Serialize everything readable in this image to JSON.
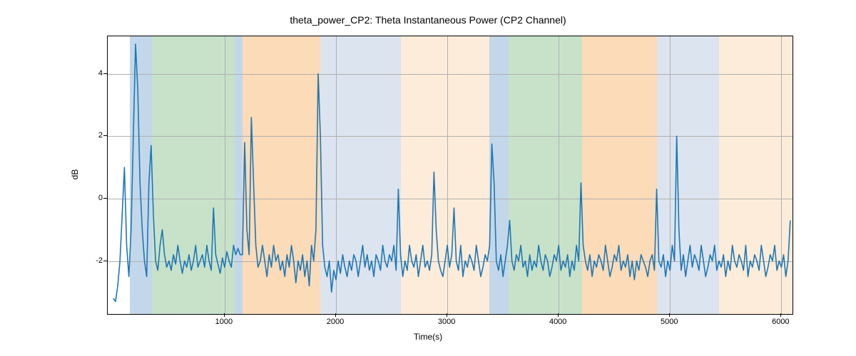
{
  "chart": {
    "type": "line",
    "title": "theta_power_CP2: Theta Instantaneous Power (CP2 Channel)",
    "xlabel": "Time(s)",
    "ylabel": "dB",
    "title_fontsize": 14,
    "label_fontsize": 12,
    "tick_fontsize": 11,
    "background_color": "#ffffff",
    "grid_color": "#b0b0b0",
    "border_color": "#000000",
    "line_color": "#1f77b4",
    "line_width": 1.6,
    "xlim": [
      -50,
      6100
    ],
    "ylim": [
      -3.7,
      5.2
    ],
    "xticks": [
      1000,
      2000,
      3000,
      4000,
      5000,
      6000
    ],
    "yticks": [
      -2,
      0,
      2,
      4
    ],
    "bands": [
      {
        "start": 150,
        "end": 350,
        "color": "#c3d7ea"
      },
      {
        "start": 350,
        "end": 1090,
        "color": "#c8e2ca"
      },
      {
        "start": 1090,
        "end": 1160,
        "color": "#c3d7ea"
      },
      {
        "start": 1160,
        "end": 1860,
        "color": "#fbdbb8"
      },
      {
        "start": 1860,
        "end": 2580,
        "color": "#dce4ef"
      },
      {
        "start": 2580,
        "end": 3380,
        "color": "#fdecd9"
      },
      {
        "start": 3380,
        "end": 3550,
        "color": "#c3d7ea"
      },
      {
        "start": 3550,
        "end": 4210,
        "color": "#c8e2ca"
      },
      {
        "start": 4210,
        "end": 4880,
        "color": "#fbdbb8"
      },
      {
        "start": 4880,
        "end": 5440,
        "color": "#dce4ef"
      },
      {
        "start": 5440,
        "end": 6100,
        "color": "#fdecd9"
      }
    ],
    "series": {
      "x_step": 20,
      "x_start": 0,
      "y": [
        -3.2,
        -3.3,
        -2.8,
        -2.0,
        -0.5,
        1.0,
        -1.5,
        -2.5,
        -1.0,
        2.0,
        4.95,
        3.5,
        0.5,
        -1.0,
        -2.0,
        -2.5,
        0.5,
        1.7,
        -0.5,
        -2.0,
        -2.3,
        -1.5,
        -1.0,
        -1.8,
        -2.2,
        -2.0,
        -2.3,
        -1.8,
        -2.1,
        -1.5,
        -2.0,
        -2.4,
        -2.0,
        -2.2,
        -1.8,
        -2.3,
        -2.0,
        -1.5,
        -2.2,
        -2.0,
        -1.8,
        -2.2,
        -1.5,
        -2.0,
        -2.3,
        -0.3,
        -1.8,
        -2.1,
        -2.4,
        -1.9,
        -2.2,
        -1.7,
        -2.0,
        -2.2,
        -1.5,
        -1.8,
        -1.6,
        -1.8,
        -1.8,
        1.8,
        -1.0,
        -1.8,
        2.6,
        0.5,
        -1.5,
        -2.2,
        -2.0,
        -1.5,
        -2.0,
        -2.5,
        -1.8,
        -2.2,
        -1.5,
        -2.0,
        -1.8,
        -2.3,
        -2.0,
        -2.5,
        -1.8,
        -2.2,
        -1.5,
        -2.0,
        -2.7,
        -2.0,
        -2.3,
        -1.8,
        -2.5,
        -2.0,
        -2.8,
        -1.5,
        -2.0,
        -1.0,
        4.0,
        2.0,
        -1.5,
        -2.2,
        -2.5,
        -2.0,
        -3.0,
        -2.3,
        -2.6,
        -2.0,
        -2.4,
        -1.8,
        -2.2,
        -2.5,
        -2.0,
        -2.3,
        -1.8,
        -2.0,
        -2.5,
        -2.0,
        -1.5,
        -2.2,
        -1.8,
        -2.3,
        -2.0,
        -2.5,
        -1.8,
        -2.0,
        -2.3,
        -1.5,
        -2.0,
        -2.2,
        -1.8,
        -2.0,
        -1.5,
        -2.3,
        0.3,
        -1.8,
        -2.5,
        -2.0,
        -2.3,
        -1.5,
        -2.0,
        -2.2,
        -1.8,
        -2.5,
        -2.0,
        -1.5,
        -2.2,
        -2.0,
        -2.3,
        -1.8,
        0.85,
        -1.0,
        -2.0,
        -2.3,
        -2.5,
        -2.0,
        -1.5,
        -2.2,
        -1.8,
        -0.3,
        -2.0,
        -2.3,
        -1.5,
        -2.5,
        -2.0,
        -2.2,
        -1.8,
        -2.0,
        -2.3,
        -1.5,
        -2.0,
        -2.5,
        -2.2,
        -1.8,
        -2.0,
        -1.5,
        1.75,
        0.5,
        -2.0,
        -2.3,
        -1.8,
        -2.5,
        -2.0,
        -1.5,
        -0.7,
        -2.0,
        -2.3,
        -1.8,
        -2.0,
        -1.5,
        -2.2,
        -2.0,
        -2.5,
        -1.8,
        -2.3,
        -2.0,
        -2.2,
        -1.5,
        -2.0,
        -2.3,
        -1.8,
        -2.0,
        -2.5,
        -2.2,
        -1.8,
        -2.0,
        -1.5,
        -2.3,
        -2.0,
        -2.2,
        -1.8,
        -2.5,
        -2.0,
        -2.3,
        -1.5,
        -2.0,
        0.5,
        -1.5,
        -2.0,
        -2.3,
        -1.8,
        -2.5,
        -2.0,
        -2.2,
        -1.8,
        -2.0,
        -2.3,
        -1.5,
        -2.0,
        -2.5,
        -2.2,
        -1.8,
        -2.0,
        -1.5,
        -2.3,
        -2.0,
        -2.2,
        -1.8,
        -2.5,
        -2.0,
        -2.6,
        -2.0,
        -2.3,
        -1.8,
        -2.0,
        -2.2,
        -2.5,
        -2.0,
        -1.8,
        -2.3,
        0.3,
        -2.0,
        -2.2,
        -1.8,
        -2.5,
        -2.0,
        -2.3,
        -1.5,
        -2.0,
        2.0,
        -1.0,
        -2.3,
        -1.8,
        -2.5,
        -2.0,
        -1.5,
        -2.2,
        -1.8,
        -2.0,
        -2.3,
        -1.5,
        -2.0,
        -2.5,
        -2.2,
        -1.8,
        -2.0,
        -1.5,
        -2.3,
        -2.0,
        -2.2,
        -1.8,
        -2.5,
        -2.0,
        -2.3,
        -1.5,
        -2.0,
        -2.2,
        -1.8,
        -2.0,
        -2.3,
        -1.5,
        -2.5,
        -2.0,
        -2.2,
        -1.8,
        -2.0,
        -2.3,
        -1.5,
        -2.0,
        -2.5,
        -2.2,
        -1.8,
        -2.0,
        -1.5,
        -2.3,
        -2.0,
        -2.2,
        -1.8,
        -2.5,
        -2.0,
        -0.7
      ]
    }
  }
}
